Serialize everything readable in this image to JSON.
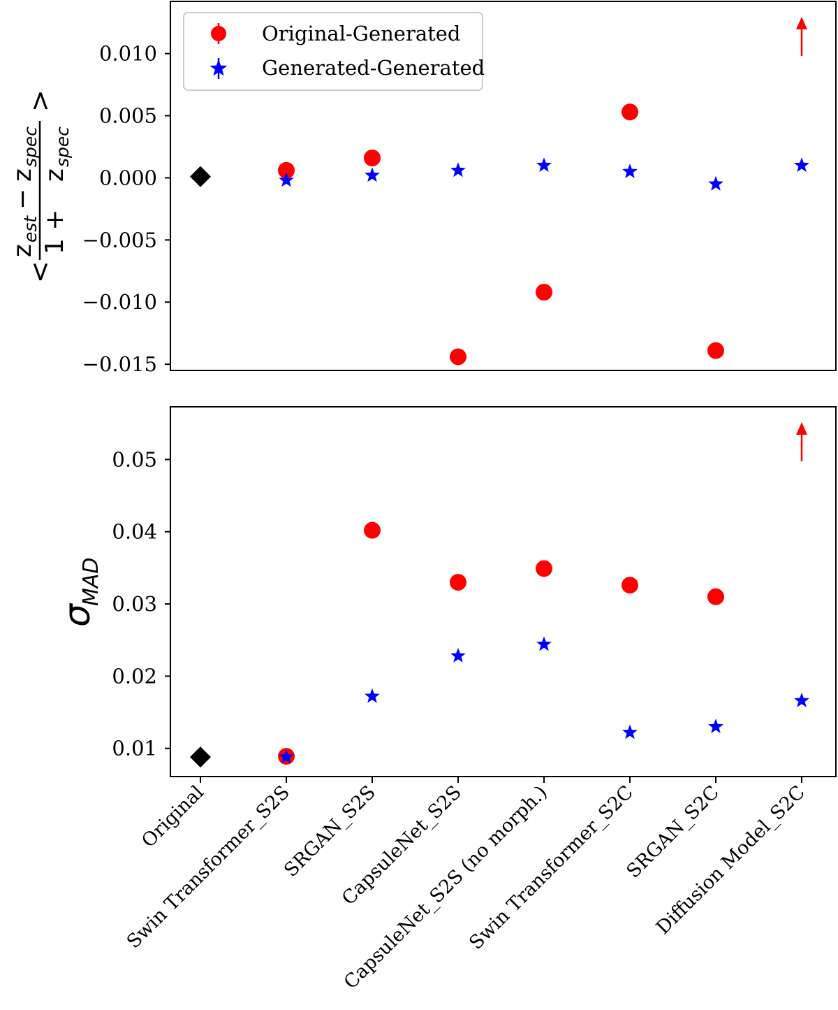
{
  "chart_data": [
    {
      "type": "scatter",
      "title": "",
      "xlabel": "",
      "ylabel_parts": {
        "open": "<",
        "close": ">",
        "num_z1": "z",
        "num_s1": "est",
        "num_op": "−",
        "num_z2": "z",
        "num_s2": "spec",
        "den_pre": "1 + ",
        "den_z": "z",
        "den_s": "spec"
      },
      "ylim": [
        -0.0155,
        0.0142
      ],
      "yticks": [
        -0.015,
        -0.01,
        -0.005,
        0.0,
        0.005,
        0.01
      ],
      "ytick_labels": [
        "−0.015",
        "−0.010",
        "−0.005",
        "0.000",
        "0.005",
        "0.010"
      ],
      "legend": {
        "placement": "top-left",
        "entries": [
          "Original-Generated",
          "Generated-Generated"
        ]
      },
      "reference": {
        "name": "Original",
        "index": 0,
        "value": 0.0001,
        "color": "#000000"
      },
      "series": [
        {
          "name": "Original-Generated",
          "marker": "circle",
          "color": "#ff0000",
          "x_index": [
            1,
            2,
            3,
            4,
            5,
            6
          ],
          "values": [
            0.0006,
            0.0016,
            -0.0144,
            -0.0092,
            0.0053,
            -0.0139
          ],
          "offscale": {
            "x_index": 7,
            "direction": "up"
          }
        },
        {
          "name": "Generated-Generated",
          "marker": "star",
          "color": "#0000ff",
          "x_index": [
            1,
            2,
            3,
            4,
            5,
            6,
            7
          ],
          "values": [
            -0.0002,
            0.0002,
            0.0006,
            0.001,
            0.0005,
            -0.0005,
            0.001
          ]
        }
      ]
    },
    {
      "type": "scatter",
      "title": "",
      "xlabel": "",
      "ylabel_parts": {
        "sym": "σ",
        "sub": "MAD"
      },
      "ylim": [
        0.0061,
        0.0573
      ],
      "yticks": [
        0.01,
        0.02,
        0.03,
        0.04,
        0.05
      ],
      "ytick_labels": [
        "0.01",
        "0.02",
        "0.03",
        "0.04",
        "0.05"
      ],
      "reference": {
        "name": "Original",
        "index": 0,
        "value": 0.0088,
        "color": "#000000"
      },
      "series": [
        {
          "name": "Original-Generated",
          "marker": "circle",
          "color": "#ff0000",
          "x_index": [
            1,
            2,
            3,
            4,
            5,
            6
          ],
          "values": [
            0.0089,
            0.0402,
            0.033,
            0.0349,
            0.0326,
            0.031
          ],
          "offscale": {
            "x_index": 7,
            "direction": "up"
          }
        },
        {
          "name": "Generated-Generated",
          "marker": "star",
          "color": "#0000ff",
          "x_index": [
            1,
            2,
            3,
            4,
            5,
            6,
            7
          ],
          "values": [
            0.0088,
            0.0172,
            0.0228,
            0.0244,
            0.0122,
            0.013,
            0.0166
          ]
        }
      ]
    }
  ],
  "categories": [
    "Original",
    "Swin Transformer_S2S",
    "SRGAN_S2S",
    "CapsuleNet_S2S",
    "CapsuleNet_S2S (no morph.)",
    "Swin Transformer_S2C",
    "SRGAN_S2C",
    "Diffusion Model_S2C"
  ],
  "colors": {
    "red": "#ff0000",
    "blue": "#0000ff",
    "black": "#000000",
    "legend_frame": "#cccccc"
  }
}
